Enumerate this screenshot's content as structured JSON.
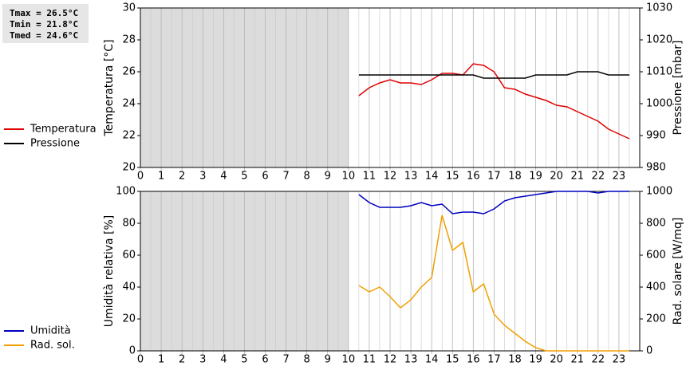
{
  "stats": [
    "Tmax = 26.5°C",
    "Tmin = 21.8°C",
    "Tmed = 24.6°C"
  ],
  "chart_data": [
    {
      "type": "line",
      "x": [
        10.5,
        11,
        11.5,
        12,
        12.5,
        13,
        13.5,
        14,
        14.5,
        15,
        15.5,
        16,
        16.5,
        17,
        17.5,
        18,
        18.5,
        19,
        19.5,
        20,
        20.5,
        21,
        21.5,
        22,
        22.5,
        23,
        23.5
      ],
      "xlim": [
        0,
        24
      ],
      "xticks": [
        0,
        1,
        2,
        3,
        4,
        5,
        6,
        7,
        8,
        9,
        10,
        11,
        12,
        13,
        14,
        15,
        16,
        17,
        18,
        19,
        20,
        21,
        22,
        23
      ],
      "ylim": [
        20,
        30
      ],
      "yticks": [
        20,
        22,
        24,
        26,
        28,
        30
      ],
      "y2lim": [
        980,
        1030
      ],
      "y2ticks": [
        980,
        990,
        1000,
        1010,
        1020,
        1030
      ],
      "y_label": "Temperatura [°C]",
      "y2_label": "Pressione [mbar]",
      "series": [
        {
          "name": "Temperatura",
          "color": "#e00000",
          "values": [
            24.5,
            25.0,
            25.3,
            25.5,
            25.3,
            25.3,
            25.2,
            25.5,
            25.9,
            25.9,
            25.8,
            26.5,
            26.4,
            26.0,
            25.0,
            24.9,
            24.6,
            24.4,
            24.2,
            23.9,
            23.8,
            23.5,
            23.2,
            22.9,
            22.4,
            22.1,
            21.8
          ]
        },
        {
          "name": "Pressione",
          "color": "#000000",
          "axis": "y2",
          "values": [
            1009,
            1009,
            1009,
            1009,
            1009,
            1009,
            1009,
            1009,
            1009,
            1009,
            1009,
            1009,
            1008,
            1008,
            1008,
            1008,
            1008,
            1009,
            1009,
            1009,
            1009,
            1010,
            1010,
            1010,
            1009,
            1009,
            1009
          ]
        }
      ]
    },
    {
      "type": "line",
      "x": [
        10.5,
        11,
        11.5,
        12,
        12.5,
        13,
        13.5,
        14,
        14.5,
        15,
        15.5,
        16,
        16.5,
        17,
        17.5,
        18,
        18.5,
        19,
        19.5,
        20,
        20.5,
        21,
        21.5,
        22,
        22.5,
        23,
        23.5
      ],
      "xlim": [
        0,
        24
      ],
      "xticks": [
        0,
        1,
        2,
        3,
        4,
        5,
        6,
        7,
        8,
        9,
        10,
        11,
        12,
        13,
        14,
        15,
        16,
        17,
        18,
        19,
        20,
        21,
        22,
        23
      ],
      "ylim": [
        0,
        100
      ],
      "yticks": [
        0,
        20,
        40,
        60,
        80,
        100
      ],
      "y2lim": [
        0,
        1000
      ],
      "y2ticks": [
        0,
        200,
        400,
        600,
        800,
        1000
      ],
      "y_label": "Umidità relativa [%]",
      "y2_label": "Rad. solare [W/mq]",
      "series": [
        {
          "name": "Umidità",
          "color": "#0000c0",
          "values": [
            98,
            93,
            90,
            90,
            90,
            91,
            93,
            91,
            92,
            86,
            87,
            87,
            86,
            89,
            94,
            96,
            97,
            98,
            99,
            100,
            100,
            100,
            100,
            99,
            100,
            100,
            100
          ]
        },
        {
          "name": "Rad. sol.",
          "color": "#f0a000",
          "axis": "y2",
          "values": [
            410,
            370,
            400,
            340,
            270,
            320,
            400,
            460,
            850,
            630,
            680,
            370,
            420,
            230,
            160,
            110,
            60,
            20,
            0,
            0,
            0,
            0,
            0,
            0,
            0,
            0,
            0
          ]
        }
      ]
    }
  ]
}
